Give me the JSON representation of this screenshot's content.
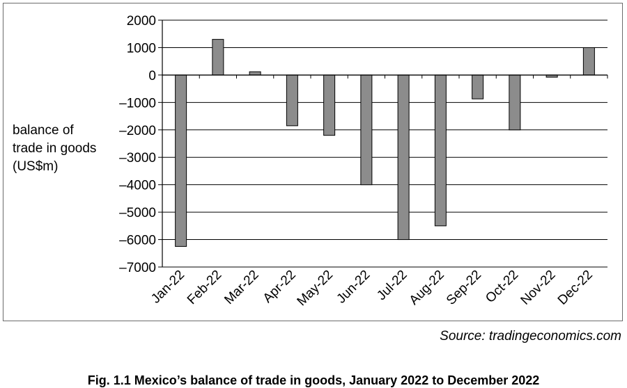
{
  "chart_data": {
    "type": "bar",
    "categories": [
      "Jan-22",
      "Feb-22",
      "Mar-22",
      "Apr-22",
      "May-22",
      "Jun-22",
      "Jul-22",
      "Aug-22",
      "Sep-22",
      "Oct-22",
      "Nov-22",
      "Dec-22"
    ],
    "values": [
      -6250,
      1300,
      120,
      -1850,
      -2200,
      -4000,
      -6000,
      -5500,
      -870,
      -2000,
      -80,
      1000
    ],
    "ylim": [
      -7000,
      2000
    ],
    "yticks": [
      2000,
      1000,
      0,
      -1000,
      -2000,
      -3000,
      -4000,
      -5000,
      -6000,
      -7000
    ],
    "ytick_labels": [
      "2000",
      "1000",
      "0",
      "–1000",
      "–2000",
      "–3000",
      "–4000",
      "–5000",
      "–6000",
      "–7000"
    ],
    "ylabel_lines": [
      "balance of",
      "trade in goods",
      "(US$m)"
    ],
    "xlabel": "",
    "grid": true,
    "bar_color": "#8c8c8c",
    "bar_stroke": "#000000"
  },
  "source": "Source: tradingeconomics.com",
  "caption": "Fig. 1.1 Mexico’s balance of trade in goods, January 2022 to December 2022"
}
